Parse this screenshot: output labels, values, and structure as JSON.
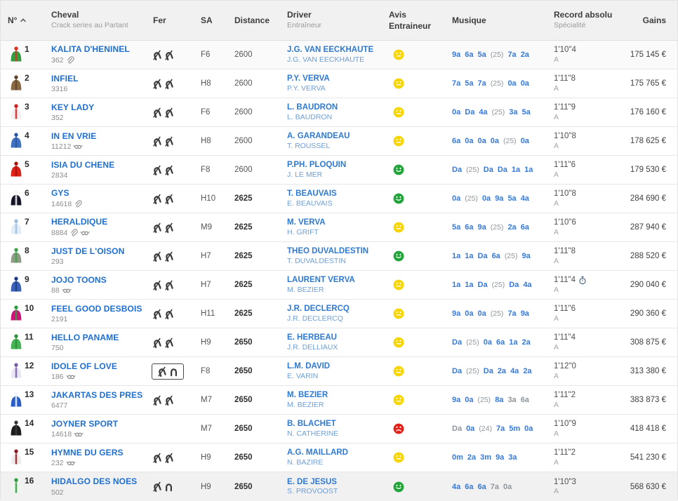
{
  "colors": {
    "accent_blue": "#1e6fd0",
    "musique_blue": "#3579d8",
    "musique_grey": "#8f969c",
    "avis_yellow": "#f7d500",
    "avis_green": "#21a53a",
    "avis_red": "#e2231a",
    "header_bg": "#f1f1f2"
  },
  "header": {
    "num": "N°",
    "cheval": "Cheval",
    "cheval_sub": "Crack series au Partant",
    "fer": "Fer",
    "sa": "SA",
    "distance": "Distance",
    "driver": "Driver",
    "driver_sub": "Entraîneur",
    "avis_l1": "Avis",
    "avis_l2": "Entraineur",
    "musique": "Musique",
    "record": "Record absolu",
    "record_sub": "Spécialité",
    "gains": "Gains",
    "sort_column": "num",
    "sort_direction": "asc"
  },
  "rows": [
    {
      "num": "1",
      "silk": [
        "#2f9e41",
        "#e03020"
      ],
      "name": "KALITA D'HENINEL",
      "sub": "362",
      "icons": [
        "link"
      ],
      "fer": "dp4",
      "sa": "F6",
      "dist": "2600",
      "db": 0,
      "driver": "J.G. VAN EECKHAUTE",
      "trainer": "J.G. VAN EECKHAUTE",
      "avis": "yellow",
      "musique": [
        {
          "t": "9a"
        },
        {
          "t": "6a"
        },
        {
          "t": "5a"
        },
        {
          "t": "(25)",
          "y": 1
        },
        {
          "t": "7a"
        },
        {
          "t": "2a"
        }
      ],
      "record": "1'10\"4",
      "spec": "A",
      "clock": 0,
      "gains": "175 145 €"
    },
    {
      "num": "2",
      "silk": [
        "#8a6a45",
        "#5f452b"
      ],
      "name": "INFIEL",
      "sub": "3316",
      "icons": [],
      "fer": "dp4",
      "sa": "H8",
      "dist": "2600",
      "db": 0,
      "driver": "P.Y. VERVA",
      "trainer": "P.Y. VERVA",
      "avis": "yellow",
      "musique": [
        {
          "t": "7a"
        },
        {
          "t": "5a"
        },
        {
          "t": "7a"
        },
        {
          "t": "(25)",
          "y": 1
        },
        {
          "t": "0a"
        },
        {
          "t": "0a"
        }
      ],
      "record": "1'11\"8",
      "spec": "A",
      "clock": 0,
      "gains": "175 765 €"
    },
    {
      "num": "3",
      "silk": [
        "#f1f1f1",
        "#d02020"
      ],
      "name": "KEY LADY",
      "sub": "352",
      "icons": [],
      "fer": "dp4",
      "sa": "F6",
      "dist": "2600",
      "db": 0,
      "driver": "L. BAUDRON",
      "trainer": "L. BAUDRON",
      "avis": "yellow",
      "musique": [
        {
          "t": "0a"
        },
        {
          "t": "Da"
        },
        {
          "t": "4a"
        },
        {
          "t": "(25)",
          "y": 1
        },
        {
          "t": "3a"
        },
        {
          "t": "5a"
        }
      ],
      "record": "1'11\"9",
      "spec": "A",
      "clock": 0,
      "gains": "176 160 €"
    },
    {
      "num": "4",
      "silk": [
        "#3f72c0",
        "#2a55a0"
      ],
      "name": "IN EN VRIE",
      "sub": "11212",
      "icons": [
        "goggles"
      ],
      "fer": "dp4",
      "sa": "H8",
      "dist": "2600",
      "db": 0,
      "driver": "A. GARANDEAU",
      "trainer": "T. ROUSSEL",
      "avis": "yellow",
      "musique": [
        {
          "t": "6a"
        },
        {
          "t": "0a"
        },
        {
          "t": "0a"
        },
        {
          "t": "0a"
        },
        {
          "t": "(25)",
          "y": 1
        },
        {
          "t": "0a"
        }
      ],
      "record": "1'10\"8",
      "spec": "A",
      "clock": 0,
      "gains": "178 625 €"
    },
    {
      "num": "5",
      "silk": [
        "#dd2318",
        "#a81208"
      ],
      "name": "ISIA DU CHENE",
      "sub": "2834",
      "icons": [],
      "fer": "dp4",
      "sa": "F8",
      "dist": "2600",
      "db": 0,
      "driver": "P.PH. PLOQUIN",
      "trainer": "J. LE MER",
      "avis": "green",
      "musique": [
        {
          "t": "Da"
        },
        {
          "t": "(25)",
          "y": 1
        },
        {
          "t": "Da"
        },
        {
          "t": "Da"
        },
        {
          "t": "1a"
        },
        {
          "t": "1a"
        }
      ],
      "record": "1'11\"6",
      "spec": "A",
      "clock": 0,
      "gains": "179 530 €"
    },
    {
      "num": "6",
      "silk": [
        "#15152a",
        "#f5f5f5"
      ],
      "name": "GYS",
      "sub": "14618",
      "icons": [
        "link"
      ],
      "fer": "dp4",
      "sa": "H10",
      "dist": "2625",
      "db": 1,
      "driver": "T. BEAUVAIS",
      "trainer": "E. BEAUVAIS",
      "avis": "green",
      "musique": [
        {
          "t": "0a"
        },
        {
          "t": "(25)",
          "y": 1
        },
        {
          "t": "0a"
        },
        {
          "t": "9a"
        },
        {
          "t": "5a"
        },
        {
          "t": "4a"
        }
      ],
      "record": "1'10\"8",
      "spec": "A",
      "clock": 0,
      "gains": "284 690 €"
    },
    {
      "num": "7",
      "silk": [
        "#e3edf7",
        "#9cbede"
      ],
      "name": "HERALDIQUE",
      "sub": "8884",
      "icons": [
        "link",
        "goggles"
      ],
      "fer": "dp4",
      "sa": "M9",
      "dist": "2625",
      "db": 1,
      "driver": "M. VERVA",
      "trainer": "H. GRIFT",
      "avis": "yellow",
      "musique": [
        {
          "t": "5a"
        },
        {
          "t": "6a"
        },
        {
          "t": "9a"
        },
        {
          "t": "(25)",
          "y": 1
        },
        {
          "t": "2a"
        },
        {
          "t": "6a"
        }
      ],
      "record": "1'10\"6",
      "spec": "A",
      "clock": 0,
      "gains": "287 940 €"
    },
    {
      "num": "8",
      "silk": [
        "#909c86",
        "#3fa04a"
      ],
      "name": "JUST DE L'OISON",
      "sub": "293",
      "icons": [],
      "fer": "dp4",
      "sa": "H7",
      "dist": "2625",
      "db": 1,
      "driver": "THEO DUVALDESTIN",
      "trainer": "T. DUVALDESTIN",
      "avis": "green",
      "musique": [
        {
          "t": "1a"
        },
        {
          "t": "1a"
        },
        {
          "t": "Da"
        },
        {
          "t": "6a"
        },
        {
          "t": "(25)",
          "y": 1
        },
        {
          "t": "9a"
        }
      ],
      "record": "1'11\"8",
      "spec": "A",
      "clock": 0,
      "gains": "288 520 €"
    },
    {
      "num": "9",
      "silk": [
        "#3a62b8",
        "#1f3d85"
      ],
      "name": "JOJO TOONS",
      "sub": "88",
      "icons": [
        "goggles"
      ],
      "fer": "dp4",
      "sa": "H7",
      "dist": "2625",
      "db": 1,
      "driver": "LAURENT VERVA",
      "trainer": "M. BEZIER",
      "avis": "yellow",
      "musique": [
        {
          "t": "1a"
        },
        {
          "t": "1a"
        },
        {
          "t": "Da"
        },
        {
          "t": "(25)",
          "y": 1
        },
        {
          "t": "Da"
        },
        {
          "t": "4a"
        }
      ],
      "record": "1'11\"4",
      "spec": "A",
      "clock": 1,
      "gains": "290 040 €"
    },
    {
      "num": "10",
      "silk": [
        "#cf1378",
        "#2f9e41"
      ],
      "name": "FEEL GOOD DESBOIS",
      "sub": "2191",
      "icons": [],
      "fer": "dp4",
      "sa": "H11",
      "dist": "2625",
      "db": 1,
      "driver": "J.R. DECLERCQ",
      "trainer": "J.R. DECLERCQ",
      "avis": "yellow",
      "musique": [
        {
          "t": "9a"
        },
        {
          "t": "0a"
        },
        {
          "t": "0a"
        },
        {
          "t": "(25)",
          "y": 1
        },
        {
          "t": "7a"
        },
        {
          "t": "9a"
        }
      ],
      "record": "1'11\"6",
      "spec": "A",
      "clock": 0,
      "gains": "290 360 €"
    },
    {
      "num": "11",
      "silk": [
        "#46b454",
        "#2f8f3d"
      ],
      "name": "HELLO PANAME",
      "sub": "750",
      "icons": [],
      "fer": "dp4",
      "sa": "H9",
      "dist": "2650",
      "db": 1,
      "driver": "E. HERBEAU",
      "trainer": "J.R. DELLIAUX",
      "avis": "yellow",
      "musique": [
        {
          "t": "Da"
        },
        {
          "t": "(25)",
          "y": 1
        },
        {
          "t": "0a"
        },
        {
          "t": "6a"
        },
        {
          "t": "1a"
        },
        {
          "t": "2a"
        }
      ],
      "record": "1'11\"4",
      "spec": "A",
      "clock": 0,
      "gains": "308 875 €"
    },
    {
      "num": "12",
      "silk": [
        "#eae6f4",
        "#7a5fa8"
      ],
      "name": "IDOLE OF LOVE",
      "sub": "186",
      "icons": [
        "goggles"
      ],
      "fer": "ant_first",
      "sa": "F8",
      "dist": "2650",
      "db": 1,
      "driver": "L.M. DAVID",
      "trainer": "E. VARIN",
      "avis": "yellow",
      "musique": [
        {
          "t": "Da"
        },
        {
          "t": "(25)",
          "y": 1
        },
        {
          "t": "Da"
        },
        {
          "t": "2a"
        },
        {
          "t": "4a"
        },
        {
          "t": "2a"
        }
      ],
      "record": "1'12\"0",
      "spec": "A",
      "clock": 0,
      "gains": "313 380 €"
    },
    {
      "num": "13",
      "silk": [
        "#2a5cc8",
        "#f0f4ff"
      ],
      "name": "JAKARTAS DES PRES",
      "sub": "6477",
      "icons": [],
      "fer": "dp4",
      "sa": "M7",
      "dist": "2650",
      "db": 1,
      "driver": "M. BEZIER",
      "trainer": "M. BEZIER",
      "avis": "yellow",
      "musique": [
        {
          "t": "9a"
        },
        {
          "t": "0a"
        },
        {
          "t": "(25)",
          "y": 1
        },
        {
          "t": "8a"
        },
        {
          "t": "3a",
          "g": 1
        },
        {
          "t": "6a",
          "g": 1
        }
      ],
      "record": "1'11\"2",
      "spec": "A",
      "clock": 0,
      "gains": "383 873 €"
    },
    {
      "num": "14",
      "silk": [
        "#1d1d1d",
        "#3a3a3a"
      ],
      "name": "JOYNER SPORT",
      "sub": "14618",
      "icons": [
        "goggles"
      ],
      "fer": "none",
      "sa": "M7",
      "dist": "2650",
      "db": 1,
      "driver": "B. BLACHET",
      "trainer": "N. CATHERINE",
      "avis": "red",
      "musique": [
        {
          "t": "Da",
          "g": 1
        },
        {
          "t": "0a"
        },
        {
          "t": "(24)",
          "y": 1
        },
        {
          "t": "7a"
        },
        {
          "t": "5m"
        },
        {
          "t": "0a"
        }
      ],
      "record": "1'10\"9",
      "spec": "A",
      "clock": 0,
      "gains": "418 418 €"
    },
    {
      "num": "15",
      "silk": [
        "#f2eded",
        "#8f1d24"
      ],
      "name": "HYMNE DU GERS",
      "sub": "232",
      "icons": [
        "goggles"
      ],
      "fer": "dp4",
      "sa": "H9",
      "dist": "2650",
      "db": 1,
      "driver": "A.G. MAILLARD",
      "trainer": "N. BAZIRE",
      "avis": "yellow",
      "musique": [
        {
          "t": "0m"
        },
        {
          "t": "2a"
        },
        {
          "t": "3m"
        },
        {
          "t": "9a"
        },
        {
          "t": "3a"
        }
      ],
      "record": "1'11\"2",
      "spec": "A",
      "clock": 0,
      "gains": "541 230 €"
    },
    {
      "num": "16",
      "silk": [
        "#eef6ed",
        "#2f9e41"
      ],
      "name": "HIDALGO DES NOES",
      "sub": "502",
      "icons": [],
      "fer": "ant",
      "sa": "H9",
      "dist": "2650",
      "db": 1,
      "driver": "E. DE JESUS",
      "trainer": "S. PROVOOST",
      "avis": "green",
      "musique": [
        {
          "t": "4a"
        },
        {
          "t": "6a"
        },
        {
          "t": "6a"
        },
        {
          "t": "7a",
          "g": 1
        },
        {
          "t": "0a",
          "g": 1
        }
      ],
      "record": "1'10\"3",
      "spec": "A",
      "clock": 0,
      "gains": "568 630 €"
    }
  ]
}
